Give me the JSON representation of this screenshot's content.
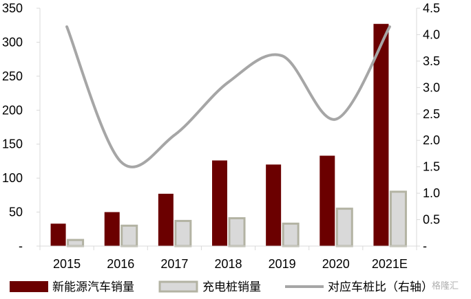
{
  "chart_data": {
    "type": "bar",
    "categories": [
      "2015",
      "2016",
      "2017",
      "2018",
      "2019",
      "2020",
      "2021E"
    ],
    "series": [
      {
        "name": "新能源汽车销量",
        "kind": "bar",
        "axis": "left",
        "color": "#6b0000",
        "values": [
          33,
          50,
          77,
          126,
          120,
          133,
          327
        ]
      },
      {
        "name": "充电桩销量",
        "kind": "bar",
        "axis": "left",
        "color": "#d9d9d9",
        "stroke": "#b3b3a3",
        "values": [
          9,
          30,
          37,
          41,
          33,
          55,
          80
        ]
      },
      {
        "name": "对应车桩比（右轴）",
        "kind": "line",
        "axis": "right",
        "color": "#a6a6a6",
        "values": [
          4.15,
          1.6,
          2.1,
          3.1,
          3.6,
          2.4,
          4.15
        ]
      }
    ],
    "ylim_left": [
      0,
      350
    ],
    "yticks_left": [
      "350",
      "300",
      "250",
      "200",
      "150",
      "100",
      "50",
      "-"
    ],
    "ylim_right": [
      0,
      4.5
    ],
    "yticks_right": [
      "4.5",
      "4.0",
      "3.5",
      "3.0",
      "2.5",
      "2.0",
      "1.5",
      "1.0",
      "0.5",
      "-"
    ],
    "grid": false,
    "legend_position": "bottom",
    "title": "",
    "xlabel": "",
    "ylabel": ""
  },
  "watermark": "格隆汇"
}
